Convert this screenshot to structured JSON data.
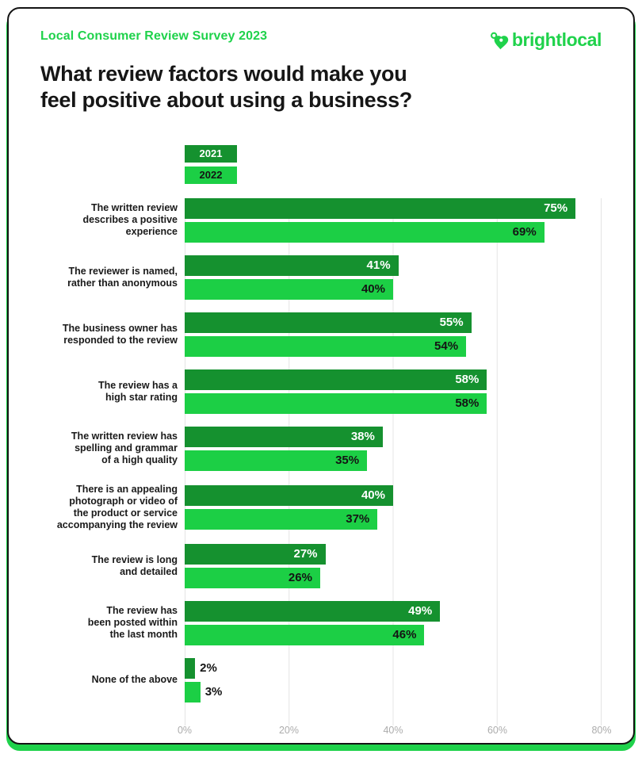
{
  "header": {
    "eyebrow": "Local Consumer Review Survey 2023",
    "title_lines": [
      "What review factors would make you",
      "feel positive about using a business?"
    ],
    "brand": "brightlocal"
  },
  "colors": {
    "accent_green": "#1FD24B",
    "bar_dark_green_2021": "#15912F",
    "bar_light_green_2022": "#1CCF45",
    "grid_line": "#E4E4E4",
    "tick_text": "#ACACAC",
    "title_text": "#161616"
  },
  "legend": [
    {
      "label": "2021",
      "swatch": "dark",
      "text_color": "#ffffff"
    },
    {
      "label": "2022",
      "swatch": "light",
      "text_color": "#141414"
    }
  ],
  "chart_data": {
    "type": "bar",
    "orientation": "horizontal",
    "title": "What review factors would make you feel positive about using a business?",
    "categories": [
      [
        "The written review",
        "describes a positive",
        "experience"
      ],
      [
        "The reviewer is named,",
        "rather than anonymous"
      ],
      [
        "The business owner has",
        "responded to the review"
      ],
      [
        "The review has a",
        "high star rating"
      ],
      [
        "The written review has",
        "spelling and grammar",
        "of a high quality"
      ],
      [
        "There is an appealing",
        "photograph or video of",
        "the product or service",
        "accompanying the review"
      ],
      [
        "The review is long",
        "and detailed"
      ],
      [
        "The review has",
        "been posted within",
        "the last month"
      ],
      [
        "None of the above"
      ]
    ],
    "series": [
      {
        "name": "2021",
        "values": [
          75,
          41,
          55,
          58,
          38,
          40,
          27,
          49,
          2
        ]
      },
      {
        "name": "2022",
        "values": [
          69,
          40,
          54,
          58,
          35,
          37,
          26,
          46,
          3
        ]
      }
    ],
    "value_suffix": "%",
    "xlim": [
      0,
      80
    ],
    "xticks": {
      "labels": [
        "0%",
        "20%",
        "40%",
        "60%",
        "80%"
      ],
      "positions_pct": [
        0,
        25,
        50,
        75,
        100
      ]
    },
    "grid": "vertical",
    "legend_position": "top-left above chart"
  }
}
